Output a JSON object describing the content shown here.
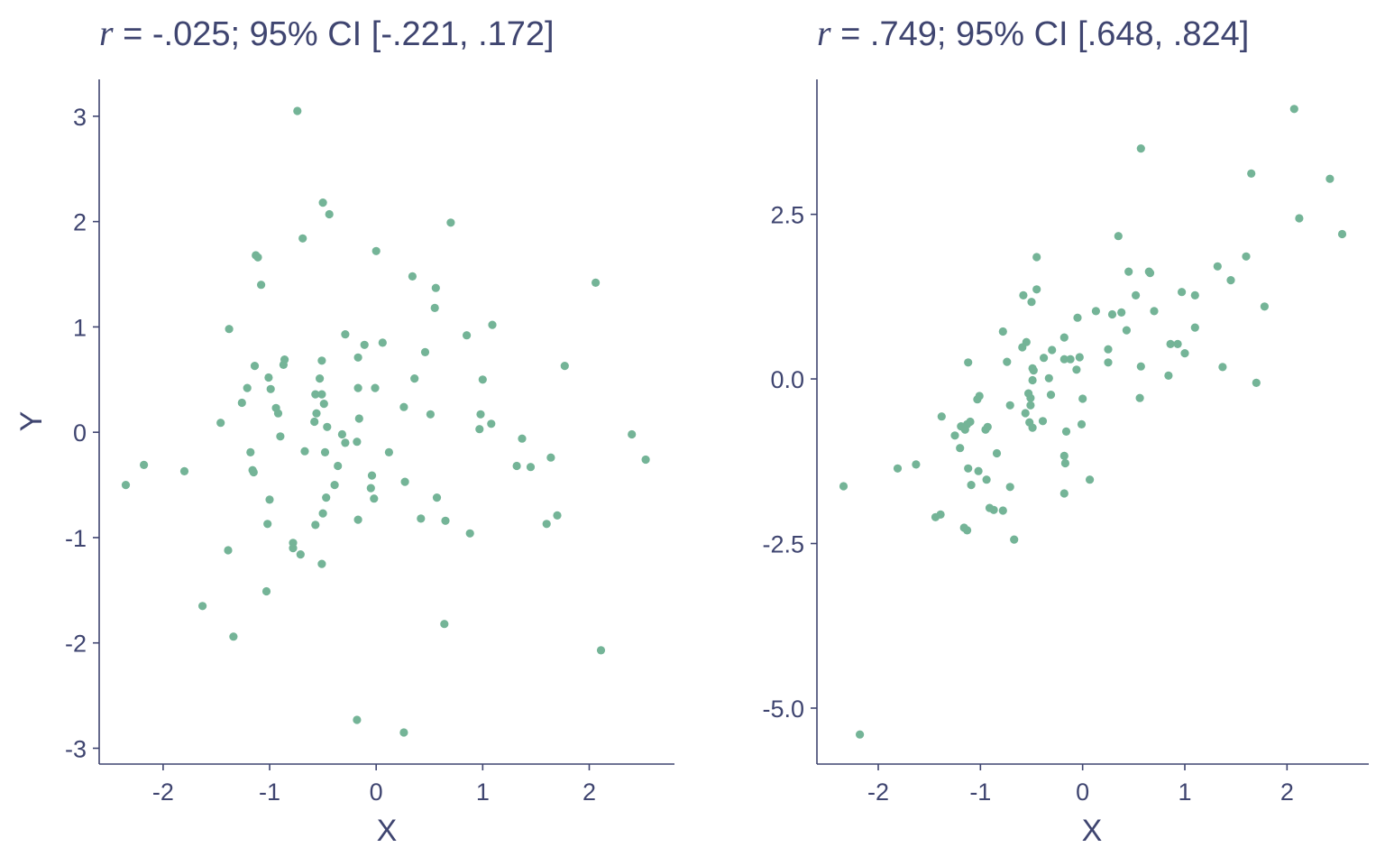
{
  "chart_data": [
    {
      "type": "scatter",
      "title_prefix": "r",
      "title_rest": " = -.025; 95% CI [-.221, .172]",
      "xlabel": "X",
      "ylabel": "Y",
      "xlim": [
        -2.6,
        2.8
      ],
      "ylim": [
        -3.15,
        3.35
      ],
      "xticks": [
        -2,
        -1,
        0,
        1,
        2
      ],
      "xtick_labels": [
        "-2",
        "-1",
        "0",
        "1",
        "2"
      ],
      "yticks": [
        3,
        2,
        1,
        0,
        -1,
        -2,
        -3
      ],
      "ytick_labels": [
        "3",
        "2",
        "1",
        "0",
        "-1",
        "-2",
        "-3"
      ],
      "point_color": "#74b497",
      "points": [
        [
          -0.74,
          3.05
        ],
        [
          -0.5,
          2.18
        ],
        [
          -0.44,
          2.07
        ],
        [
          0.7,
          1.99
        ],
        [
          -0.69,
          1.84
        ],
        [
          0.0,
          1.72
        ],
        [
          -1.13,
          1.68
        ],
        [
          -1.11,
          1.66
        ],
        [
          2.06,
          1.42
        ],
        [
          0.34,
          1.48
        ],
        [
          -1.08,
          1.4
        ],
        [
          0.56,
          1.37
        ],
        [
          0.55,
          1.18
        ],
        [
          1.09,
          1.02
        ],
        [
          -1.38,
          0.98
        ],
        [
          -0.29,
          0.93
        ],
        [
          0.85,
          0.92
        ],
        [
          -0.11,
          0.83
        ],
        [
          0.06,
          0.85
        ],
        [
          0.46,
          0.76
        ],
        [
          -0.17,
          0.71
        ],
        [
          -0.86,
          0.69
        ],
        [
          -0.87,
          0.64
        ],
        [
          -0.51,
          0.68
        ],
        [
          1.77,
          0.63
        ],
        [
          -1.14,
          0.63
        ],
        [
          -1.01,
          0.52
        ],
        [
          -0.53,
          0.51
        ],
        [
          0.36,
          0.51
        ],
        [
          1.0,
          0.5
        ],
        [
          -1.21,
          0.42
        ],
        [
          -0.99,
          0.41
        ],
        [
          -0.17,
          0.42
        ],
        [
          -0.01,
          0.42
        ],
        [
          -0.57,
          0.36
        ],
        [
          -0.51,
          0.36
        ],
        [
          -1.26,
          0.28
        ],
        [
          -0.49,
          0.27
        ],
        [
          0.26,
          0.24
        ],
        [
          -0.94,
          0.23
        ],
        [
          -0.92,
          0.18
        ],
        [
          -0.56,
          0.18
        ],
        [
          0.51,
          0.17
        ],
        [
          0.98,
          0.17
        ],
        [
          -0.16,
          0.13
        ],
        [
          -1.46,
          0.09
        ],
        [
          -0.58,
          0.1
        ],
        [
          -0.46,
          0.05
        ],
        [
          1.08,
          0.08
        ],
        [
          0.97,
          0.03
        ],
        [
          -0.32,
          -0.02
        ],
        [
          2.4,
          -0.02
        ],
        [
          -0.9,
          -0.04
        ],
        [
          1.37,
          -0.06
        ],
        [
          -0.29,
          -0.1
        ],
        [
          -0.18,
          -0.09
        ],
        [
          -2.18,
          -0.31
        ],
        [
          -1.18,
          -0.19
        ],
        [
          -0.67,
          -0.18
        ],
        [
          -0.48,
          -0.19
        ],
        [
          0.12,
          -0.19
        ],
        [
          1.64,
          -0.24
        ],
        [
          2.53,
          -0.26
        ],
        [
          1.32,
          -0.32
        ],
        [
          1.45,
          -0.33
        ],
        [
          -0.36,
          -0.32
        ],
        [
          -1.16,
          -0.36
        ],
        [
          -1.15,
          -0.38
        ],
        [
          -1.8,
          -0.37
        ],
        [
          -0.04,
          -0.41
        ],
        [
          -2.35,
          -0.5
        ],
        [
          -0.39,
          -0.5
        ],
        [
          -0.05,
          -0.53
        ],
        [
          0.27,
          -0.47
        ],
        [
          -0.47,
          -0.62
        ],
        [
          -0.02,
          -0.63
        ],
        [
          0.57,
          -0.62
        ],
        [
          -1.0,
          -0.64
        ],
        [
          -0.5,
          -0.77
        ],
        [
          0.42,
          -0.82
        ],
        [
          -0.17,
          -0.83
        ],
        [
          0.65,
          -0.84
        ],
        [
          1.7,
          -0.79
        ],
        [
          1.6,
          -0.87
        ],
        [
          -1.02,
          -0.87
        ],
        [
          -0.57,
          -0.88
        ],
        [
          0.88,
          -0.96
        ],
        [
          -0.78,
          -1.05
        ],
        [
          -0.78,
          -1.1
        ],
        [
          -1.39,
          -1.12
        ],
        [
          -0.71,
          -1.16
        ],
        [
          -0.51,
          -1.25
        ],
        [
          -1.03,
          -1.51
        ],
        [
          -1.63,
          -1.65
        ],
        [
          0.64,
          -1.82
        ],
        [
          -1.34,
          -1.94
        ],
        [
          2.11,
          -2.07
        ],
        [
          -0.18,
          -2.73
        ],
        [
          0.26,
          -2.85
        ]
      ]
    },
    {
      "type": "scatter",
      "title_prefix": "r",
      "title_rest": " = .749; 95% CI [.648, .824]",
      "xlabel": "X",
      "ylabel": "",
      "xlim": [
        -2.6,
        2.8
      ],
      "ylim": [
        -5.85,
        4.55
      ],
      "xticks": [
        -2,
        -1,
        0,
        1,
        2
      ],
      "xtick_labels": [
        "-2",
        "-1",
        "0",
        "1",
        "2"
      ],
      "yticks": [
        2.5,
        0.0,
        -2.5,
        -5.0
      ],
      "ytick_labels": [
        "2.5",
        "0.0",
        "-2.5",
        "-5.0"
      ],
      "point_color": "#74b497",
      "points": [
        [
          2.07,
          4.1
        ],
        [
          0.57,
          3.5
        ],
        [
          1.65,
          3.12
        ],
        [
          2.42,
          3.04
        ],
        [
          2.12,
          2.44
        ],
        [
          2.54,
          2.2
        ],
        [
          0.35,
          2.17
        ],
        [
          -0.45,
          1.85
        ],
        [
          1.6,
          1.86
        ],
        [
          1.32,
          1.71
        ],
        [
          0.65,
          1.63
        ],
        [
          0.66,
          1.61
        ],
        [
          0.45,
          1.63
        ],
        [
          1.45,
          1.5
        ],
        [
          0.97,
          1.32
        ],
        [
          -0.45,
          1.36
        ],
        [
          -0.58,
          1.27
        ],
        [
          0.52,
          1.27
        ],
        [
          1.1,
          1.27
        ],
        [
          -0.5,
          1.17
        ],
        [
          1.78,
          1.1
        ],
        [
          0.7,
          1.03
        ],
        [
          0.13,
          1.03
        ],
        [
          0.38,
          1.01
        ],
        [
          0.29,
          0.98
        ],
        [
          -0.05,
          0.93
        ],
        [
          1.1,
          0.78
        ],
        [
          0.43,
          0.74
        ],
        [
          -0.78,
          0.72
        ],
        [
          -0.18,
          0.63
        ],
        [
          -0.55,
          0.56
        ],
        [
          -0.59,
          0.48
        ],
        [
          0.86,
          0.53
        ],
        [
          0.93,
          0.53
        ],
        [
          -0.3,
          0.44
        ],
        [
          0.25,
          0.45
        ],
        [
          1.0,
          0.39
        ],
        [
          -0.03,
          0.33
        ],
        [
          -0.38,
          0.32
        ],
        [
          -0.18,
          0.3
        ],
        [
          -0.12,
          0.3
        ],
        [
          -1.12,
          0.25
        ],
        [
          -0.74,
          0.26
        ],
        [
          0.25,
          0.25
        ],
        [
          0.57,
          0.19
        ],
        [
          1.37,
          0.18
        ],
        [
          -0.49,
          0.16
        ],
        [
          -0.48,
          0.13
        ],
        [
          -0.06,
          0.14
        ],
        [
          0.84,
          0.05
        ],
        [
          -0.33,
          0.01
        ],
        [
          -0.49,
          -0.02
        ],
        [
          1.7,
          -0.06
        ],
        [
          -0.53,
          -0.22
        ],
        [
          -0.31,
          -0.24
        ],
        [
          -1.01,
          -0.26
        ],
        [
          -1.03,
          -0.31
        ],
        [
          -0.51,
          -0.29
        ],
        [
          0.0,
          -0.3
        ],
        [
          0.56,
          -0.29
        ],
        [
          -0.71,
          -0.4
        ],
        [
          -0.51,
          -0.4
        ],
        [
          -0.56,
          -0.52
        ],
        [
          -1.38,
          -0.57
        ],
        [
          -0.39,
          -0.64
        ],
        [
          -0.52,
          -0.66
        ],
        [
          -1.1,
          -0.65
        ],
        [
          -1.13,
          -0.69
        ],
        [
          -0.01,
          -0.69
        ],
        [
          -1.19,
          -0.72
        ],
        [
          -0.93,
          -0.73
        ],
        [
          -0.95,
          -0.77
        ],
        [
          -1.15,
          -0.77
        ],
        [
          -0.49,
          -0.74
        ],
        [
          -0.16,
          -0.8
        ],
        [
          -1.25,
          -0.86
        ],
        [
          -1.2,
          -1.05
        ],
        [
          -0.84,
          -1.13
        ],
        [
          -0.18,
          -1.17
        ],
        [
          -0.17,
          -1.28
        ],
        [
          -1.12,
          -1.36
        ],
        [
          -1.02,
          -1.4
        ],
        [
          -1.81,
          -1.36
        ],
        [
          -1.63,
          -1.3
        ],
        [
          -0.94,
          -1.53
        ],
        [
          0.07,
          -1.53
        ],
        [
          -1.09,
          -1.61
        ],
        [
          -2.34,
          -1.63
        ],
        [
          -0.71,
          -1.64
        ],
        [
          -0.18,
          -1.74
        ],
        [
          -0.91,
          -1.96
        ],
        [
          -0.87,
          -1.99
        ],
        [
          -0.78,
          -2.0
        ],
        [
          -1.39,
          -2.06
        ],
        [
          -1.44,
          -2.1
        ],
        [
          -1.16,
          -2.26
        ],
        [
          -1.13,
          -2.3
        ],
        [
          -0.67,
          -2.44
        ],
        [
          -2.18,
          -5.4
        ]
      ]
    }
  ]
}
